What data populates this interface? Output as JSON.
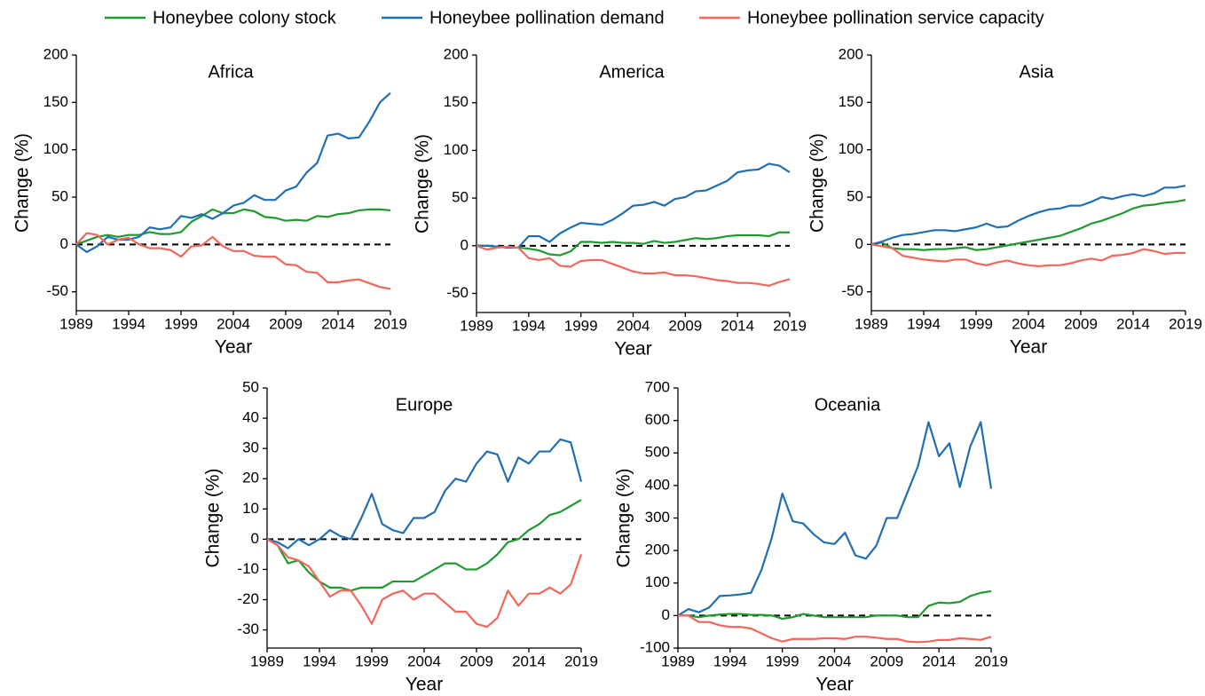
{
  "chart_data": [
    {
      "type": "line",
      "title": "Africa",
      "xlabel": "Year",
      "ylabel": "Change (%)",
      "x": [
        1989,
        1990,
        1991,
        1992,
        1993,
        1994,
        1995,
        1996,
        1997,
        1998,
        1999,
        2000,
        2001,
        2002,
        2003,
        2004,
        2005,
        2006,
        2007,
        2008,
        2009,
        2010,
        2011,
        2012,
        2013,
        2014,
        2015,
        2016,
        2017,
        2018,
        2019
      ],
      "xlim": [
        1989,
        2019
      ],
      "xticks": [
        1989,
        1994,
        1999,
        2004,
        2009,
        2014,
        2019
      ],
      "ylim": [
        -70,
        200
      ],
      "yticks": [
        -50,
        0,
        50,
        100,
        150,
        200
      ],
      "reference_line": 0,
      "series": [
        {
          "name": "Honeybee colony stock",
          "color": "#1f9a2e",
          "values": [
            0,
            4,
            8,
            10,
            8,
            10,
            10,
            13,
            11,
            11,
            13,
            24,
            30,
            37,
            33,
            33,
            37,
            35,
            29,
            28,
            25,
            26,
            25,
            30,
            29,
            32,
            33,
            36,
            37,
            37,
            36
          ]
        },
        {
          "name": "Honeybee pollination demand",
          "color": "#1f6fb4",
          "values": [
            0,
            -8,
            -2,
            8,
            5,
            5,
            8,
            18,
            16,
            18,
            30,
            28,
            32,
            27,
            33,
            41,
            44,
            52,
            47,
            47,
            57,
            61,
            76,
            86,
            115,
            117,
            112,
            113,
            130,
            150,
            160
          ]
        },
        {
          "name": "Honeybee pollination service capacity",
          "color": "#f4665a",
          "values": [
            0,
            12,
            10,
            0,
            5,
            7,
            0,
            -4,
            -4,
            -6,
            -13,
            -2,
            -1,
            8,
            -2,
            -7,
            -7,
            -12,
            -13,
            -13,
            -21,
            -22,
            -29,
            -30,
            -40,
            -40,
            -38,
            -37,
            -41,
            -45,
            -47
          ]
        }
      ]
    },
    {
      "type": "line",
      "title": "America",
      "xlabel": "Year",
      "ylabel": "Change (%)",
      "x": [
        1989,
        1990,
        1991,
        1992,
        1993,
        1994,
        1995,
        1996,
        1997,
        1998,
        1999,
        2000,
        2001,
        2002,
        2003,
        2004,
        2005,
        2006,
        2007,
        2008,
        2009,
        2010,
        2011,
        2012,
        2013,
        2014,
        2015,
        2016,
        2017,
        2018,
        2019
      ],
      "xlim": [
        1989,
        2019
      ],
      "xticks": [
        1989,
        1994,
        1999,
        2004,
        2009,
        2014,
        2019
      ],
      "ylim": [
        -70,
        200
      ],
      "yticks": [
        -50,
        0,
        50,
        100,
        150,
        200
      ],
      "reference_line": 0,
      "series": [
        {
          "color": "#1f9a2e",
          "values": [
            0,
            0,
            -1,
            -2,
            -2,
            -3,
            -5,
            -9,
            -10,
            -6,
            4,
            4,
            3,
            4,
            3,
            3,
            2,
            5,
            3,
            4,
            6,
            8,
            7,
            8,
            10,
            11,
            11,
            11,
            10,
            14,
            14
          ]
        },
        {
          "color": "#1f6fb4",
          "values": [
            0,
            0,
            -1,
            -2,
            -2,
            10,
            10,
            4,
            13,
            19,
            24,
            23,
            22,
            27,
            34,
            42,
            43,
            46,
            42,
            49,
            51,
            57,
            58,
            63,
            68,
            77,
            79,
            80,
            86,
            84,
            77
          ]
        },
        {
          "color": "#f4665a",
          "values": [
            0,
            -4,
            -2,
            -1,
            -2,
            -13,
            -15,
            -13,
            -21,
            -22,
            -16,
            -15,
            -15,
            -19,
            -23,
            -27,
            -29,
            -29,
            -28,
            -31,
            -31,
            -32,
            -34,
            -36,
            -37,
            -39,
            -39,
            -40,
            -42,
            -38,
            -35
          ]
        }
      ]
    },
    {
      "type": "line",
      "title": "Asia",
      "xlabel": "Year",
      "ylabel": "Change (%)",
      "x": [
        1989,
        1990,
        1991,
        1992,
        1993,
        1994,
        1995,
        1996,
        1997,
        1998,
        1999,
        2000,
        2001,
        2002,
        2003,
        2004,
        2005,
        2006,
        2007,
        2008,
        2009,
        2010,
        2011,
        2012,
        2013,
        2014,
        2015,
        2016,
        2017,
        2018,
        2019
      ],
      "xlim": [
        1989,
        2019
      ],
      "xticks": [
        1989,
        1994,
        1999,
        2004,
        2009,
        2014,
        2019
      ],
      "ylim": [
        -70,
        200
      ],
      "yticks": [
        -50,
        0,
        50,
        100,
        150,
        200
      ],
      "reference_line": 0,
      "series": [
        {
          "color": "#1f9a2e",
          "values": [
            0,
            2,
            -4,
            -5,
            -5,
            -6,
            -5,
            -5,
            -4,
            -3,
            -6,
            -5,
            -3,
            -1,
            1,
            3,
            5,
            7,
            9,
            13,
            17,
            22,
            25,
            29,
            33,
            38,
            41,
            42,
            44,
            45,
            47
          ]
        },
        {
          "color": "#1f6fb4",
          "values": [
            0,
            3,
            7,
            10,
            11,
            13,
            15,
            15,
            14,
            16,
            18,
            22,
            18,
            19,
            25,
            30,
            34,
            37,
            38,
            41,
            41,
            45,
            50,
            48,
            51,
            53,
            51,
            54,
            60,
            60,
            62
          ]
        },
        {
          "color": "#f4665a",
          "values": [
            0,
            -2,
            -4,
            -12,
            -14,
            -16,
            -17,
            -18,
            -16,
            -16,
            -20,
            -22,
            -19,
            -17,
            -20,
            -22,
            -23,
            -22,
            -22,
            -20,
            -17,
            -15,
            -17,
            -12,
            -11,
            -9,
            -5,
            -7,
            -10,
            -9,
            -9
          ]
        }
      ]
    },
    {
      "type": "line",
      "title": "Europe",
      "xlabel": "Year",
      "ylabel": "Change (%)",
      "x": [
        1989,
        1990,
        1991,
        1992,
        1993,
        1994,
        1995,
        1996,
        1997,
        1998,
        1999,
        2000,
        2001,
        2002,
        2003,
        2004,
        2005,
        2006,
        2007,
        2008,
        2009,
        2010,
        2011,
        2012,
        2013,
        2014,
        2015,
        2016,
        2017,
        2018,
        2019
      ],
      "xlim": [
        1989,
        2019
      ],
      "xticks": [
        1989,
        1994,
        1999,
        2004,
        2009,
        2014,
        2019
      ],
      "ylim": [
        -36,
        50
      ],
      "yticks": [
        -30,
        -20,
        -10,
        0,
        10,
        20,
        30,
        40,
        50
      ],
      "reference_line": 0,
      "series": [
        {
          "color": "#1f9a2e",
          "values": [
            0,
            -2,
            -8,
            -7,
            -11,
            -14,
            -16,
            -16,
            -17,
            -16,
            -16,
            -16,
            -14,
            -14,
            -14,
            -12,
            -10,
            -8,
            -8,
            -10,
            -10,
            -8,
            -5,
            -1,
            0,
            3,
            5,
            8,
            9,
            11,
            13
          ]
        },
        {
          "color": "#1f6fb4",
          "values": [
            0,
            -1,
            -3,
            0,
            -2,
            0,
            3,
            1,
            0,
            7,
            15,
            5,
            3,
            2,
            7,
            7,
            9,
            16,
            20,
            19,
            25,
            29,
            28,
            19,
            27,
            25,
            29,
            29,
            33,
            32,
            19
          ]
        },
        {
          "color": "#f4665a",
          "values": [
            0,
            -2,
            -6,
            -7,
            -9,
            -14,
            -19,
            -17,
            -17,
            -22,
            -28,
            -20,
            -18,
            -17,
            -20,
            -18,
            -18,
            -21,
            -24,
            -24,
            -28,
            -29,
            -26,
            -17,
            -22,
            -18,
            -18,
            -16,
            -18,
            -15,
            -5
          ]
        }
      ]
    },
    {
      "type": "line",
      "title": "Oceania",
      "xlabel": "Year",
      "ylabel": "Change (%)",
      "x": [
        1989,
        1990,
        1991,
        1992,
        1993,
        1994,
        1995,
        1996,
        1997,
        1998,
        1999,
        2000,
        2001,
        2002,
        2003,
        2004,
        2005,
        2006,
        2007,
        2008,
        2009,
        2010,
        2011,
        2012,
        2013,
        2014,
        2015,
        2016,
        2017,
        2018,
        2019
      ],
      "xlim": [
        1989,
        2019
      ],
      "xticks": [
        1989,
        1994,
        1999,
        2004,
        2009,
        2014,
        2019
      ],
      "ylim": [
        -100,
        700
      ],
      "yticks": [
        -100,
        0,
        100,
        200,
        300,
        400,
        500,
        600,
        700
      ],
      "reference_line": 0,
      "series": [
        {
          "color": "#1f9a2e",
          "values": [
            0,
            0,
            -5,
            0,
            3,
            5,
            5,
            2,
            2,
            0,
            -10,
            -5,
            5,
            0,
            -5,
            -5,
            -5,
            -5,
            -5,
            0,
            0,
            0,
            -5,
            -5,
            30,
            40,
            38,
            42,
            60,
            70,
            75
          ]
        },
        {
          "color": "#1f6fb4",
          "values": [
            0,
            20,
            10,
            25,
            60,
            62,
            65,
            70,
            140,
            240,
            375,
            290,
            283,
            250,
            225,
            220,
            255,
            185,
            175,
            215,
            300,
            300,
            380,
            460,
            595,
            490,
            530,
            395,
            520,
            595,
            390
          ]
        },
        {
          "color": "#f4665a",
          "values": [
            0,
            0,
            -20,
            -20,
            -30,
            -35,
            -35,
            -40,
            -55,
            -70,
            -80,
            -72,
            -72,
            -72,
            -70,
            -70,
            -72,
            -65,
            -65,
            -68,
            -72,
            -72,
            -80,
            -82,
            -80,
            -75,
            -75,
            -70,
            -72,
            -75,
            -65
          ]
        }
      ]
    }
  ]
}
